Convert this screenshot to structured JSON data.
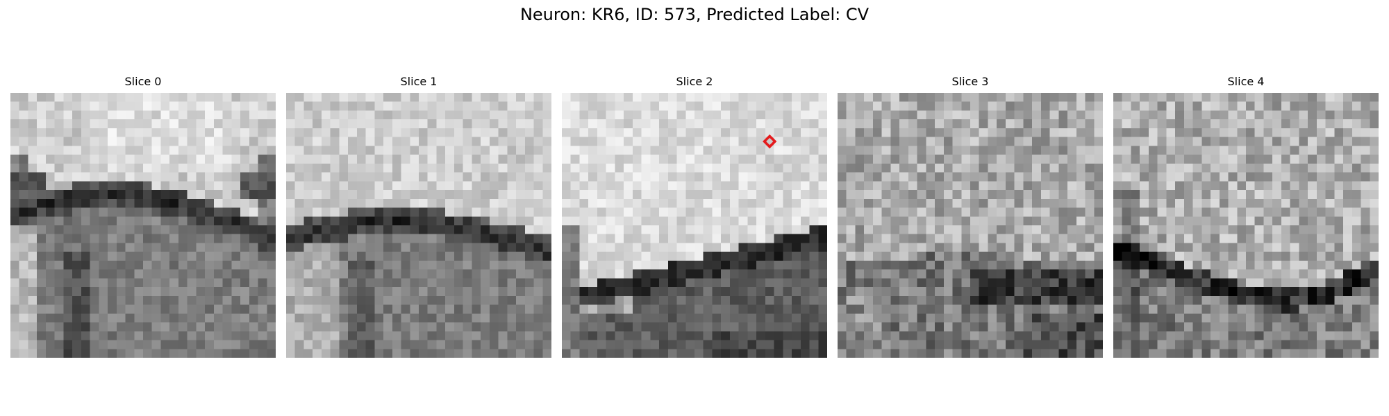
{
  "figure": {
    "title": "Neuron: KR6, ID: 573, Predicted Label: CV"
  },
  "slices": [
    {
      "title": "Slice 0",
      "pattern": "upper-cell-dark-band-lower-cell"
    },
    {
      "title": "Slice 1",
      "pattern": "upper-cell-dark-band-lower-cell"
    },
    {
      "title": "Slice 2",
      "pattern": "bright-cell-dark-lower-region",
      "marker": true
    },
    {
      "title": "Slice 3",
      "pattern": "noisy-mid-gray-dark-lower-right"
    },
    {
      "title": "Slice 4",
      "pattern": "noisy-cell-dark-membrane-curve"
    }
  ],
  "marker": {
    "slice_index": 2,
    "color": "#e41a1c",
    "shape": "diamond",
    "grid_cell": [
      23,
      5
    ]
  },
  "colormap": "gray"
}
